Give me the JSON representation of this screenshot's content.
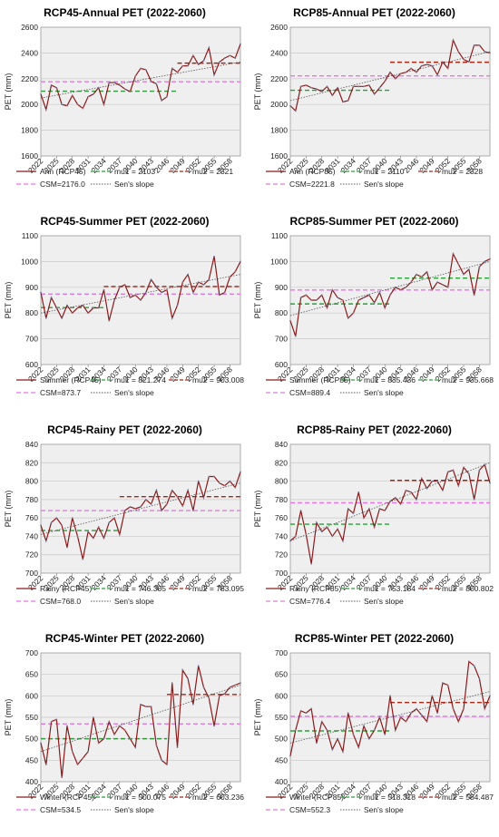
{
  "chart_data": [
    {
      "type": "line",
      "title": "RCP45-Annual PET (2022-2060)",
      "ylabel": "PET (mm)",
      "ylim": [
        1600,
        2600
      ],
      "yticks": [
        1600,
        1800,
        2000,
        2200,
        2400,
        2600
      ],
      "x_start": 2022,
      "x_end": 2060,
      "xtick_labels": [
        "2022",
        "2025",
        "2028",
        "2031",
        "2034",
        "2037",
        "2040",
        "2043",
        "2046",
        "2049",
        "2052",
        "2055",
        "2058"
      ],
      "grid": true,
      "series": [
        {
          "name": "Ann (RCP45)",
          "color": "#8b1a1a",
          "values": [
            2080,
            1960,
            2150,
            2130,
            2000,
            1990,
            2070,
            2000,
            1970,
            2060,
            2080,
            2130,
            2000,
            2170,
            2170,
            2150,
            2120,
            2100,
            2220,
            2280,
            2270,
            2180,
            2160,
            2030,
            2060,
            2280,
            2250,
            2300,
            2300,
            2380,
            2310,
            2340,
            2440,
            2230,
            2330,
            2360,
            2380,
            2360,
            2470
          ]
        }
      ],
      "mean_lines": [
        {
          "name": "mu1 = 2103",
          "value": 2103,
          "x_from": 2022,
          "x_to": 2048,
          "color": "#2e9e3a"
        },
        {
          "name": "mu2 = 2321",
          "value": 2321,
          "x_from": 2048,
          "x_to": 2060,
          "color": "#a02a1a"
        },
        {
          "name": "CSM=2176.0",
          "value": 2176,
          "x_from": 2022,
          "x_to": 2060,
          "color": "#e07ae0"
        }
      ],
      "trend": {
        "name": "Sen's slope",
        "start": 2050,
        "end": 2330
      }
    },
    {
      "type": "line",
      "title": "RCP85-Annual PET (2022-2060)",
      "ylabel": "PET (mm)",
      "ylim": [
        1600,
        2600
      ],
      "yticks": [
        1600,
        1800,
        2000,
        2200,
        2400,
        2600
      ],
      "x_start": 2022,
      "x_end": 2060,
      "xtick_labels": [
        "2022",
        "2025",
        "2028",
        "2031",
        "2034",
        "2037",
        "2040",
        "2043",
        "2046",
        "2049",
        "2052",
        "2055",
        "2058"
      ],
      "grid": true,
      "series": [
        {
          "name": "Ann (RCP85)",
          "color": "#8b1a1a",
          "values": [
            1990,
            1950,
            2140,
            2150,
            2130,
            2120,
            2100,
            2140,
            2070,
            2130,
            2020,
            2030,
            2140,
            2140,
            2140,
            2150,
            2080,
            2130,
            2180,
            2250,
            2200,
            2240,
            2250,
            2280,
            2250,
            2300,
            2310,
            2300,
            2230,
            2330,
            2280,
            2500,
            2410,
            2350,
            2330,
            2460,
            2460,
            2410,
            2400
          ]
        }
      ],
      "mean_lines": [
        {
          "name": "mu1 = 2110",
          "value": 2110,
          "x_from": 2022,
          "x_to": 2041,
          "color": "#2e9e3a"
        },
        {
          "name": "mu2 = 2328",
          "value": 2328,
          "x_from": 2041,
          "x_to": 2060,
          "color": "#a02a1a"
        },
        {
          "name": "CSM=2221.8",
          "value": 2221.8,
          "x_from": 2022,
          "x_to": 2060,
          "color": "#e07ae0"
        }
      ],
      "trend": {
        "name": "Sen's slope",
        "start": 2030,
        "end": 2410
      }
    },
    {
      "type": "line",
      "title": "RCP45-Summer PET (2022-2060)",
      "ylabel": "PET (mm)",
      "ylim": [
        600,
        1100
      ],
      "yticks": [
        600,
        700,
        800,
        900,
        1000,
        1100
      ],
      "x_start": 2022,
      "x_end": 2060,
      "xtick_labels": [
        "2022",
        "2025",
        "2028",
        "2031",
        "2034",
        "2037",
        "2040",
        "2043",
        "2046",
        "2049",
        "2052",
        "2055",
        "2058"
      ],
      "grid": true,
      "series": [
        {
          "name": "Summer (RCP45)",
          "color": "#8b1a1a",
          "values": [
            880,
            780,
            860,
            820,
            780,
            830,
            800,
            820,
            830,
            800,
            820,
            820,
            890,
            770,
            850,
            900,
            910,
            860,
            870,
            850,
            880,
            930,
            900,
            880,
            890,
            780,
            830,
            920,
            950,
            880,
            920,
            910,
            930,
            1020,
            870,
            880,
            940,
            960,
            1000
          ]
        }
      ],
      "mean_lines": [
        {
          "name": "mu1 = 821.274",
          "value": 821.274,
          "x_from": 2022,
          "x_to": 2034,
          "color": "#2e9e3a"
        },
        {
          "name": "mu2 = 903.008",
          "value": 903.008,
          "x_from": 2034,
          "x_to": 2060,
          "color": "#a02a1a"
        },
        {
          "name": "CSM=873.7",
          "value": 873.7,
          "x_from": 2022,
          "x_to": 2060,
          "color": "#e07ae0"
        }
      ],
      "trend": {
        "name": "Sen's slope",
        "start": 800,
        "end": 950
      }
    },
    {
      "type": "line",
      "title": "RCP85-Summer PET (2022-2060)",
      "ylabel": "PET (mm)",
      "ylim": [
        600,
        1100
      ],
      "yticks": [
        600,
        700,
        800,
        900,
        1000,
        1100
      ],
      "x_start": 2022,
      "x_end": 2060,
      "xtick_labels": [
        "2022",
        "2025",
        "2028",
        "2031",
        "2034",
        "2037",
        "2040",
        "2043",
        "2046",
        "2049",
        "2052",
        "2055",
        "2058"
      ],
      "grid": true,
      "series": [
        {
          "name": "Summer (RCP85)",
          "color": "#8b1a1a",
          "values": [
            770,
            710,
            860,
            870,
            850,
            850,
            870,
            820,
            890,
            860,
            850,
            780,
            800,
            850,
            860,
            870,
            840,
            880,
            820,
            870,
            900,
            890,
            900,
            920,
            950,
            940,
            960,
            890,
            920,
            910,
            900,
            1030,
            990,
            950,
            970,
            870,
            980,
            1000,
            1010
          ]
        }
      ],
      "mean_lines": [
        {
          "name": "mu1 = 835.436",
          "value": 835.436,
          "x_from": 2022,
          "x_to": 2041,
          "color": "#2e9e3a"
        },
        {
          "name": "mu2 = 935.668",
          "value": 935.668,
          "x_from": 2041,
          "x_to": 2060,
          "color": "#2e9e3a"
        },
        {
          "name": "CSM=889.4",
          "value": 889.4,
          "x_from": 2022,
          "x_to": 2060,
          "color": "#e07ae0"
        }
      ],
      "trend": {
        "name": "Sen's slope",
        "start": 790,
        "end": 1000
      }
    },
    {
      "type": "line",
      "title": "RCP45-Rainy PET (2022-2060)",
      "ylabel": "PET (mm)",
      "ylim": [
        700,
        840
      ],
      "yticks": [
        700,
        720,
        740,
        760,
        780,
        800,
        820,
        840
      ],
      "x_start": 2022,
      "x_end": 2060,
      "xtick_labels": [
        "2022",
        "2025",
        "2028",
        "2031",
        "2034",
        "2037",
        "2040",
        "2043",
        "2046",
        "2049",
        "2052",
        "2055",
        "2058"
      ],
      "grid": true,
      "series": [
        {
          "name": "Rainy (RCP45)",
          "color": "#8b1a1a",
          "values": [
            752,
            735,
            755,
            760,
            752,
            728,
            760,
            740,
            715,
            745,
            738,
            750,
            738,
            755,
            760,
            742,
            768,
            772,
            770,
            772,
            780,
            775,
            790,
            768,
            775,
            790,
            783,
            773,
            790,
            768,
            800,
            782,
            805,
            805,
            798,
            795,
            800,
            793,
            810
          ]
        }
      ],
      "mean_lines": [
        {
          "name": "mu1 = 746.305",
          "value": 746.305,
          "x_from": 2022,
          "x_to": 2037,
          "color": "#2e9e3a"
        },
        {
          "name": "mu2 = 783.095",
          "value": 783.095,
          "x_from": 2037,
          "x_to": 2060,
          "color": "#a02a1a"
        },
        {
          "name": "CSM=768.0",
          "value": 768.0,
          "x_from": 2022,
          "x_to": 2060,
          "color": "#e07ae0"
        }
      ],
      "trend": {
        "name": "Sen's slope",
        "start": 742,
        "end": 798
      }
    },
    {
      "type": "line",
      "title": "RCP85-Rainy PET (2022-2060)",
      "ylabel": "PET (mm)",
      "ylim": [
        700,
        840
      ],
      "yticks": [
        700,
        720,
        740,
        760,
        780,
        800,
        820,
        840
      ],
      "x_start": 2022,
      "x_end": 2060,
      "xtick_labels": [
        "2022",
        "2025",
        "2028",
        "2031",
        "2034",
        "2037",
        "2040",
        "2043",
        "2046",
        "2049",
        "2052",
        "2055",
        "2058"
      ],
      "grid": true,
      "series": [
        {
          "name": "Rainy (RCP85)",
          "color": "#8b1a1a",
          "values": [
            735,
            740,
            768,
            742,
            710,
            755,
            745,
            750,
            740,
            748,
            735,
            770,
            765,
            788,
            760,
            770,
            750,
            770,
            768,
            778,
            782,
            775,
            790,
            788,
            780,
            803,
            792,
            800,
            800,
            790,
            810,
            812,
            795,
            815,
            808,
            780,
            812,
            818,
            798
          ]
        }
      ],
      "mean_lines": [
        {
          "name": "mu1 = 753.184",
          "value": 753.184,
          "x_from": 2022,
          "x_to": 2041,
          "color": "#2e9e3a"
        },
        {
          "name": "mu2 = 800.802",
          "value": 800.802,
          "x_from": 2041,
          "x_to": 2060,
          "color": "#a02a1a"
        },
        {
          "name": "CSM=776.4",
          "value": 776.4,
          "x_from": 2022,
          "x_to": 2060,
          "color": "#e07ae0"
        }
      ],
      "trend": {
        "name": "Sen's slope",
        "start": 735,
        "end": 820
      }
    },
    {
      "type": "line",
      "title": "RCP45-Winter PET (2022-2060)",
      "ylabel": "PET (mm)",
      "ylim": [
        400,
        700
      ],
      "yticks": [
        400,
        450,
        500,
        550,
        600,
        650,
        700
      ],
      "x_start": 2022,
      "x_end": 2060,
      "xtick_labels": [
        "2022",
        "2025",
        "2028",
        "2031",
        "2034",
        "2037",
        "2040",
        "2043",
        "2046",
        "2049",
        "2052",
        "2055",
        "2058"
      ],
      "grid": true,
      "series": [
        {
          "name": "Winter (RCP45)",
          "color": "#8b1a1a",
          "values": [
            490,
            440,
            540,
            545,
            410,
            530,
            470,
            440,
            455,
            470,
            550,
            490,
            500,
            540,
            510,
            530,
            520,
            500,
            480,
            580,
            575,
            575,
            485,
            450,
            440,
            630,
            480,
            660,
            640,
            580,
            670,
            620,
            595,
            530,
            600,
            605,
            620,
            625,
            630
          ]
        }
      ],
      "mean_lines": [
        {
          "name": "mu1 = 500.075",
          "value": 500.075,
          "x_from": 2022,
          "x_to": 2046,
          "color": "#2e9e3a"
        },
        {
          "name": "mu2 = 603.236",
          "value": 603.236,
          "x_from": 2046,
          "x_to": 2060,
          "color": "#a02a1a"
        },
        {
          "name": "CSM=534.5",
          "value": 534.5,
          "x_from": 2022,
          "x_to": 2060,
          "color": "#e07ae0"
        }
      ],
      "trend": {
        "name": "Sen's slope",
        "start": 470,
        "end": 625
      }
    },
    {
      "type": "line",
      "title": "RCP85-Winter PET (2022-2060)",
      "ylabel": "PET (mm)",
      "ylim": [
        400,
        700
      ],
      "yticks": [
        400,
        450,
        500,
        550,
        600,
        650,
        700
      ],
      "x_start": 2022,
      "x_end": 2060,
      "xtick_labels": [
        "2022",
        "2025",
        "2028",
        "2031",
        "2034",
        "2037",
        "2040",
        "2043",
        "2046",
        "2049",
        "2052",
        "2055",
        "2058"
      ],
      "grid": true,
      "series": [
        {
          "name": "Winter (RCP85)",
          "color": "#8b1a1a",
          "values": [
            460,
            520,
            565,
            560,
            570,
            490,
            540,
            520,
            475,
            500,
            470,
            560,
            510,
            480,
            530,
            500,
            520,
            550,
            510,
            600,
            520,
            550,
            540,
            560,
            570,
            555,
            540,
            600,
            560,
            630,
            625,
            570,
            540,
            570,
            680,
            670,
            640,
            570,
            600
          ]
        }
      ],
      "mean_lines": [
        {
          "name": "mu1 = 518.318",
          "value": 518.318,
          "x_from": 2022,
          "x_to": 2041,
          "color": "#2e9e3a"
        },
        {
          "name": "mu2 = 584.487",
          "value": 584.487,
          "x_from": 2041,
          "x_to": 2060,
          "color": "#a02a1a"
        },
        {
          "name": "CSM=552.3",
          "value": 552.3,
          "x_from": 2022,
          "x_to": 2060,
          "color": "#e07ae0"
        }
      ],
      "trend": {
        "name": "Sen's slope",
        "start": 490,
        "end": 610
      }
    }
  ]
}
